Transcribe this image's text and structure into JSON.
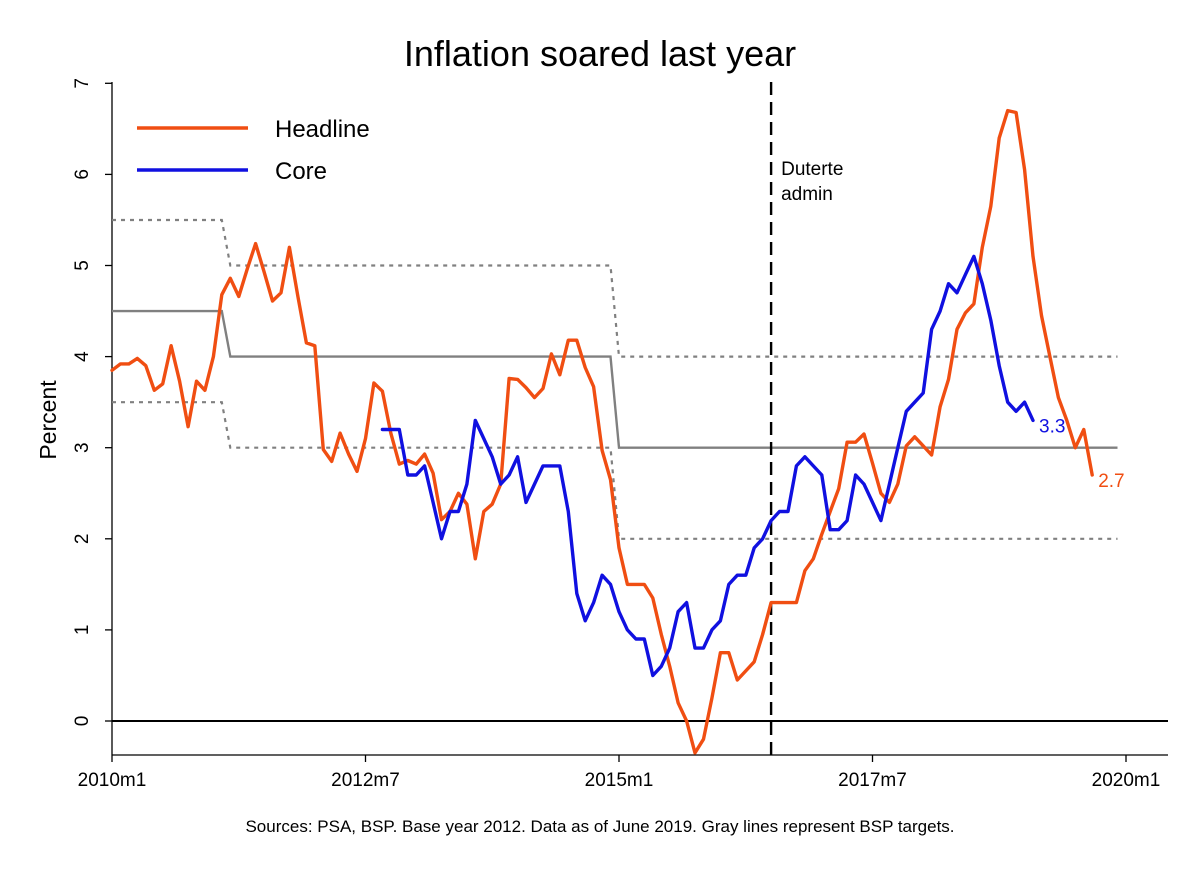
{
  "chart_data": {
    "type": "line",
    "title": "Inflation soared last year",
    "ylabel": "Percent",
    "xlabel": "",
    "x_ticks": [
      "2010m1",
      "2012m7",
      "2015m1",
      "2017m7",
      "2020m1"
    ],
    "y_ticks": [
      "0",
      "1",
      "2",
      "3",
      "4",
      "5",
      "6",
      "7"
    ],
    "ylim": [
      -0.35,
      7
    ],
    "x_range": [
      "2010-01",
      "2020-04"
    ],
    "grid": false,
    "legend_position": "top-left",
    "source_note": "Sources: PSA, BSP. Base year 2012. Data as of June 2019. Gray lines represent BSP targets.",
    "annotation": {
      "line1": "Duterte",
      "line2": "admin",
      "x": "2016-07"
    },
    "series": [
      {
        "name": "Headline",
        "color": "#F04E12",
        "end_label": "2.7",
        "start": "2010-01",
        "values": [
          3.85,
          3.92,
          3.92,
          3.98,
          3.9,
          3.63,
          3.7,
          4.12,
          3.73,
          3.23,
          3.73,
          3.63,
          4.0,
          4.68,
          4.86,
          4.66,
          4.96,
          5.24,
          4.93,
          4.61,
          4.7,
          5.2,
          4.66,
          4.15,
          4.12,
          2.98,
          2.85,
          3.16,
          2.93,
          2.74,
          3.1,
          3.71,
          3.62,
          3.16,
          2.82,
          2.86,
          2.82,
          2.93,
          2.72,
          2.21,
          2.3,
          2.5,
          2.38,
          1.78,
          2.3,
          2.38,
          2.6,
          3.76,
          3.75,
          3.66,
          3.55,
          3.65,
          4.03,
          3.8,
          4.18,
          4.18,
          3.88,
          3.67,
          2.97,
          2.65,
          1.9,
          1.5,
          1.5,
          1.5,
          1.35,
          0.95,
          0.6,
          0.2,
          0.0,
          -0.35,
          -0.2,
          0.25,
          0.75,
          0.75,
          0.45,
          0.55,
          0.65,
          0.95,
          1.3,
          1.3,
          1.3,
          1.3,
          1.65,
          1.78,
          2.05,
          2.3,
          2.55,
          3.06,
          3.06,
          3.15,
          2.83,
          2.5,
          2.4,
          2.6,
          3.02,
          3.12,
          3.02,
          2.92,
          3.45,
          3.75,
          4.3,
          4.48,
          4.58,
          5.2,
          5.65,
          6.4,
          6.7,
          6.68,
          6.05,
          5.1,
          4.45,
          4.0,
          3.55,
          3.3,
          3.0,
          3.2,
          2.7
        ]
      },
      {
        "name": "Core",
        "color": "#1010E0",
        "end_label": "3.3",
        "start": "2012-09",
        "values": [
          3.2,
          3.2,
          3.2,
          2.7,
          2.7,
          2.8,
          2.4,
          2.0,
          2.3,
          2.3,
          2.6,
          3.3,
          3.1,
          2.9,
          2.6,
          2.7,
          2.9,
          2.4,
          2.6,
          2.8,
          2.8,
          2.8,
          2.3,
          1.4,
          1.1,
          1.3,
          1.6,
          1.5,
          1.2,
          1.0,
          0.9,
          0.9,
          0.5,
          0.6,
          0.8,
          1.2,
          1.3,
          0.8,
          0.8,
          1.0,
          1.1,
          1.5,
          1.6,
          1.6,
          1.9,
          2.0,
          2.2,
          2.3,
          2.3,
          2.8,
          2.9,
          2.8,
          2.7,
          2.1,
          2.1,
          2.2,
          2.7,
          2.6,
          2.4,
          2.2,
          2.6,
          3.0,
          3.4,
          3.5,
          3.6,
          4.3,
          4.5,
          4.8,
          4.7,
          4.9,
          5.1,
          4.8,
          4.4,
          3.9,
          3.5,
          3.4,
          3.5,
          3.3
        ]
      }
    ],
    "targets": {
      "color": "#808080",
      "midpoint": [
        {
          "from": "2010-01",
          "to": "2011-02",
          "value": 4.5
        },
        {
          "from": "2011-03",
          "to": "2014-12",
          "value": 4.0
        },
        {
          "from": "2015-01",
          "to": "2019-12",
          "value": 3.0
        }
      ],
      "upper": [
        {
          "from": "2010-01",
          "to": "2011-02",
          "value": 5.5
        },
        {
          "from": "2011-03",
          "to": "2014-12",
          "value": 5.0
        },
        {
          "from": "2015-01",
          "to": "2019-12",
          "value": 4.0
        }
      ],
      "lower": [
        {
          "from": "2010-01",
          "to": "2011-02",
          "value": 3.5
        },
        {
          "from": "2011-03",
          "to": "2014-12",
          "value": 3.0
        },
        {
          "from": "2015-01",
          "to": "2019-12",
          "value": 2.0
        }
      ]
    }
  }
}
